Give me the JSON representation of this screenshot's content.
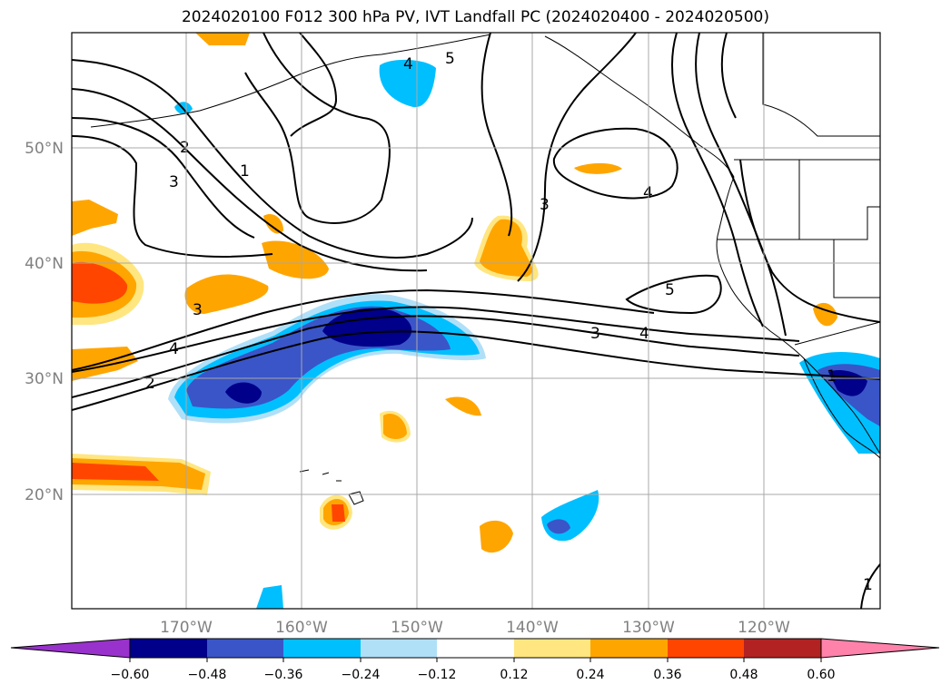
{
  "title": "2024020100 F012 300 hPa PV, IVT Landfall PC (2024020400 - 2024020500)",
  "map": {
    "lat_labels": [
      "50°N",
      "40°N",
      "30°N",
      "20°N"
    ],
    "lon_labels": [
      "170°W",
      "160°W",
      "150°W",
      "140°W",
      "130°W",
      "120°W"
    ],
    "contour_labels": [
      "5",
      "4",
      "3",
      "2",
      "1"
    ],
    "colorbar": {
      "ticks": [
        "−0.60",
        "−0.48",
        "−0.36",
        "−0.24",
        "−0.12",
        "0.12",
        "0.24",
        "0.36",
        "0.48",
        "0.60"
      ],
      "colors": [
        "#9932cc",
        "#00008b",
        "#3a55c8",
        "#00bfff",
        "#b0e0f8",
        "#ffffff",
        "#ffe680",
        "#ffa500",
        "#ff4500",
        "#b22222",
        "#ff82ab"
      ]
    }
  }
}
